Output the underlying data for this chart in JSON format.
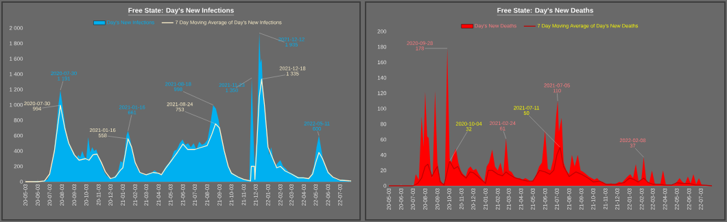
{
  "chart_data": [
    {
      "type": "area",
      "title": "Free State:  Day's New Infections",
      "legend": "top",
      "xlim": [
        "2020-05-03",
        "2022-07-31"
      ],
      "ylim": [
        0,
        2000
      ],
      "xticks": [
        {
          "value": "2020-05-03",
          "label": "20-05-03"
        },
        {
          "value": "2020-06-03",
          "label": "20-06-03"
        },
        {
          "value": "2020-07-03",
          "label": "20-07-03"
        },
        {
          "value": "2020-08-03",
          "label": "20-08-03"
        },
        {
          "value": "2020-09-03",
          "label": "20-09-03"
        },
        {
          "value": "2020-10-03",
          "label": "20-10-03"
        },
        {
          "value": "2020-11-03",
          "label": "20-11-03"
        },
        {
          "value": "2020-12-03",
          "label": "20-12-03"
        },
        {
          "value": "2021-01-03",
          "label": "21-01-03"
        },
        {
          "value": "2021-02-03",
          "label": "21-02-03"
        },
        {
          "value": "2021-03-03",
          "label": "21-03-03"
        },
        {
          "value": "2021-04-03",
          "label": "21-04-03"
        },
        {
          "value": "2021-05-03",
          "label": "21-05-03"
        },
        {
          "value": "2021-06-03",
          "label": "21-06-03"
        },
        {
          "value": "2021-07-03",
          "label": "21-07-03"
        },
        {
          "value": "2021-08-03",
          "label": "21-08-03"
        },
        {
          "value": "2021-09-03",
          "label": "21-09-03"
        },
        {
          "value": "2021-10-03",
          "label": "21-10-03"
        },
        {
          "value": "2021-11-03",
          "label": "21-11-03"
        },
        {
          "value": "2021-12-03",
          "label": "21-12-03"
        },
        {
          "value": "2022-01-03",
          "label": "22-01-03"
        },
        {
          "value": "2022-02-03",
          "label": "22-02-03"
        },
        {
          "value": "2022-03-03",
          "label": "22-03-03"
        },
        {
          "value": "2022-04-03",
          "label": "22-04-03"
        },
        {
          "value": "2022-05-03",
          "label": "22-05-03"
        },
        {
          "value": "2022-06-03",
          "label": "22-06-03"
        },
        {
          "value": "2022-07-03",
          "label": "22-07-03"
        }
      ],
      "yticks": [
        0,
        200,
        400,
        600,
        800,
        {
          "value": 1000,
          "label": "1 000"
        },
        {
          "value": 1200,
          "label": "1 200"
        },
        {
          "value": 1400,
          "label": "1 400"
        },
        {
          "value": 1600,
          "label": "1 600"
        },
        {
          "value": 1800,
          "label": "1 800"
        },
        {
          "value": 2000,
          "label": "2 000"
        }
      ],
      "series": [
        {
          "name": "Day's New Infections",
          "color": "#00b0f0",
          "x": [
            "2020-05-03",
            "2020-05-17",
            "2020-05-31",
            "2020-06-14",
            "2020-06-28",
            "2020-07-05",
            "2020-07-10",
            "2020-07-15",
            "2020-07-20",
            "2020-07-25",
            "2020-07-30",
            "2020-08-03",
            "2020-08-08",
            "2020-08-13",
            "2020-08-18",
            "2020-08-23",
            "2020-08-28",
            "2020-09-03",
            "2020-09-08",
            "2020-09-13",
            "2020-09-18",
            "2020-09-23",
            "2020-09-28",
            "2020-10-03",
            "2020-10-08",
            "2020-10-13",
            "2020-10-18",
            "2020-10-23",
            "2020-10-28",
            "2020-11-03",
            "2020-11-08",
            "2020-11-13",
            "2020-11-18",
            "2020-11-23",
            "2020-11-28",
            "2020-12-03",
            "2020-12-08",
            "2020-12-13",
            "2020-12-18",
            "2020-12-23",
            "2020-12-28",
            "2021-01-02",
            "2021-01-07",
            "2021-01-12",
            "2021-01-16",
            "2021-01-21",
            "2021-01-26",
            "2021-01-31",
            "2021-02-05",
            "2021-02-10",
            "2021-02-15",
            "2021-02-20",
            "2021-02-25",
            "2021-03-03",
            "2021-03-10",
            "2021-03-17",
            "2021-03-24",
            "2021-03-31",
            "2021-04-07",
            "2021-04-14",
            "2021-04-21",
            "2021-04-28",
            "2021-05-05",
            "2021-05-12",
            "2021-05-19",
            "2021-05-26",
            "2021-06-02",
            "2021-06-09",
            "2021-06-16",
            "2021-06-23",
            "2021-06-30",
            "2021-07-07",
            "2021-07-14",
            "2021-07-21",
            "2021-07-28",
            "2021-08-04",
            "2021-08-11",
            "2021-08-18",
            "2021-08-25",
            "2021-09-01",
            "2021-09-08",
            "2021-09-15",
            "2021-09-22",
            "2021-09-29",
            "2021-10-06",
            "2021-10-13",
            "2021-10-20",
            "2021-10-27",
            "2021-11-03",
            "2021-11-10",
            "2021-11-17",
            "2021-11-23",
            "2021-11-30",
            "2021-12-05",
            "2021-12-08",
            "2021-12-12",
            "2021-12-15",
            "2021-12-18",
            "2021-12-22",
            "2021-12-27",
            "2022-01-01",
            "2022-01-06",
            "2022-01-11",
            "2022-01-16",
            "2022-01-21",
            "2022-01-28",
            "2022-02-03",
            "2022-02-10",
            "2022-02-17",
            "2022-02-24",
            "2022-03-03",
            "2022-03-10",
            "2022-03-17",
            "2022-03-24",
            "2022-03-31",
            "2022-04-07",
            "2022-04-14",
            "2022-04-21",
            "2022-04-28",
            "2022-05-05",
            "2022-05-11",
            "2022-05-16",
            "2022-05-21",
            "2022-05-28",
            "2022-06-04",
            "2022-06-11",
            "2022-06-18",
            "2022-06-25",
            "2022-07-02",
            "2022-07-09",
            "2022-07-16",
            "2022-07-23",
            "2022-07-30"
          ],
          "values": [
            0,
            0,
            10,
            10,
            30,
            120,
            250,
            450,
            700,
            1000,
            1191,
            1050,
            850,
            650,
            550,
            480,
            420,
            370,
            300,
            350,
            320,
            400,
            330,
            300,
            580,
            380,
            450,
            400,
            420,
            330,
            280,
            180,
            120,
            80,
            60,
            40,
            50,
            70,
            90,
            150,
            270,
            250,
            350,
            600,
            661,
            560,
            440,
            300,
            200,
            160,
            120,
            110,
            90,
            100,
            110,
            120,
            150,
            120,
            90,
            130,
            200,
            240,
            300,
            400,
            420,
            500,
            550,
            480,
            500,
            450,
            500,
            420,
            520,
            480,
            500,
            550,
            750,
            998,
            950,
            800,
            550,
            400,
            250,
            150,
            110,
            90,
            70,
            50,
            30,
            20,
            20,
            1350,
            200,
            500,
            1000,
            1935,
            1550,
            1600,
            1100,
            900,
            550,
            350,
            450,
            300,
            200,
            250,
            280,
            200,
            170,
            130,
            110,
            90,
            70,
            60,
            60,
            50,
            40,
            80,
            200,
            450,
            600,
            450,
            300,
            200,
            130,
            80,
            50,
            30,
            20,
            30,
            20,
            10,
            10
          ]
        },
        {
          "name": "7 Day Moving Average of Day's New Infections",
          "type": "line",
          "color": "#fff2cc",
          "x": [
            "2020-05-03",
            "2020-06-03",
            "2020-06-20",
            "2020-07-03",
            "2020-07-15",
            "2020-07-30",
            "2020-08-10",
            "2020-08-20",
            "2020-09-03",
            "2020-09-15",
            "2020-10-01",
            "2020-10-10",
            "2020-10-20",
            "2020-10-30",
            "2020-11-10",
            "2020-11-20",
            "2020-12-03",
            "2020-12-15",
            "2020-12-28",
            "2021-01-03",
            "2021-01-16",
            "2021-01-25",
            "2021-02-03",
            "2021-02-15",
            "2021-03-03",
            "2021-03-20",
            "2021-04-03",
            "2021-04-10",
            "2021-04-20",
            "2021-05-03",
            "2021-05-20",
            "2021-06-03",
            "2021-06-15",
            "2021-07-03",
            "2021-07-15",
            "2021-08-03",
            "2021-08-15",
            "2021-08-24",
            "2021-09-03",
            "2021-09-15",
            "2021-09-25",
            "2021-10-03",
            "2021-10-20",
            "2021-11-03",
            "2021-11-20",
            "2021-11-22",
            "2021-11-30",
            "2021-12-01",
            "2021-12-05",
            "2021-12-12",
            "2021-12-18",
            "2021-12-25",
            "2022-01-03",
            "2022-01-15",
            "2022-01-25",
            "2022-02-03",
            "2022-02-15",
            "2022-03-03",
            "2022-03-20",
            "2022-04-03",
            "2022-04-15",
            "2022-04-25",
            "2022-05-03",
            "2022-05-11",
            "2022-05-20",
            "2022-06-03",
            "2022-06-15",
            "2022-07-03",
            "2022-07-31"
          ],
          "values": [
            0,
            0,
            10,
            100,
            400,
            994,
            700,
            500,
            350,
            280,
            300,
            280,
            350,
            360,
            250,
            130,
            40,
            60,
            150,
            180,
            558,
            450,
            250,
            120,
            90,
            120,
            110,
            90,
            170,
            260,
            380,
            490,
            420,
            420,
            440,
            470,
            620,
            753,
            700,
            400,
            200,
            110,
            60,
            30,
            10,
            200,
            200,
            30,
            400,
            1100,
            1335,
            1000,
            450,
            300,
            180,
            200,
            140,
            100,
            50,
            50,
            40,
            100,
            250,
            380,
            300,
            120,
            60,
            20,
            10
          ]
        }
      ],
      "annotations": [
        "2020-07-30",
        {
          "text": "1 191",
          "x": "2020-07-30",
          "y": 1191
        },
        "2020-07-30",
        {
          "text": "994",
          "x": "2020-07-30",
          "y": 994
        },
        "2021-01-16",
        {
          "text": "661",
          "x": "2021-01-16",
          "y": 661
        },
        "2021-01-16",
        {
          "text": "558",
          "x": "2021-01-16",
          "y": 558
        },
        "2021-08-18",
        {
          "text": "998",
          "x": "2021-08-18",
          "y": 998
        },
        "2021-08-24",
        {
          "text": "753",
          "x": "2021-08-24",
          "y": 753
        },
        "2021-11-23",
        {
          "text": "1 350",
          "x": "2021-11-23",
          "y": 1350
        },
        "2021-12-12",
        {
          "text": "1 935",
          "x": "2021-12-12",
          "y": 1935
        },
        "2021-12-18",
        {
          "text": "1 335",
          "x": "2021-12-18",
          "y": 1335
        },
        "2022-05-11",
        {
          "text": "600",
          "x": "2022-05-11",
          "y": 600
        }
      ]
    },
    {
      "type": "area",
      "title": "Free State:  Day's New Deaths",
      "legend": "top",
      "xlim": [
        "2020-05-03",
        "2022-07-31"
      ],
      "ylim": [
        0,
        200
      ],
      "xticks": [
        {
          "value": "2020-05-03",
          "label": "20-05-03"
        },
        {
          "value": "2020-06-03",
          "label": "20-06-03"
        },
        {
          "value": "2020-07-03",
          "label": "20-07-03"
        },
        {
          "value": "2020-08-03",
          "label": "20-08-03"
        },
        {
          "value": "2020-09-03",
          "label": "20-09-03"
        },
        {
          "value": "2020-10-03",
          "label": "20-10-03"
        },
        {
          "value": "2020-11-03",
          "label": "20-11-03"
        },
        {
          "value": "2020-12-03",
          "label": "20-12-03"
        },
        {
          "value": "2021-01-03",
          "label": "21-01-03"
        },
        {
          "value": "2021-02-03",
          "label": "21-02-03"
        },
        {
          "value": "2021-03-03",
          "label": "21-03-03"
        },
        {
          "value": "2021-04-03",
          "label": "21-04-03"
        },
        {
          "value": "2021-05-03",
          "label": "21-05-03"
        },
        {
          "value": "2021-06-03",
          "label": "21-06-03"
        },
        {
          "value": "2021-07-03",
          "label": "21-07-03"
        },
        {
          "value": "2021-08-03",
          "label": "21-08-03"
        },
        {
          "value": "2021-09-03",
          "label": "21-09-03"
        },
        {
          "value": "2021-10-03",
          "label": "21-10-03"
        },
        {
          "value": "2021-11-03",
          "label": "21-11-03"
        },
        {
          "value": "2021-12-03",
          "label": "21-12-03"
        },
        {
          "value": "2022-01-03",
          "label": "22-01-03"
        },
        {
          "value": "2022-02-03",
          "label": "22-02-03"
        },
        {
          "value": "2022-03-03",
          "label": "22-03-03"
        },
        {
          "value": "2022-04-03",
          "label": "22-04-03"
        },
        {
          "value": "2022-05-03",
          "label": "22-05-03"
        },
        {
          "value": "2022-06-03",
          "label": "22-06-03"
        },
        {
          "value": "2022-07-03",
          "label": "22-07-03"
        }
      ],
      "yticks": [
        0,
        20,
        40,
        60,
        80,
        100,
        120,
        140,
        160,
        180,
        200
      ],
      "series": [
        {
          "name": "Day's New Deaths",
          "color": "#ff0000",
          "x": [
            "2020-05-03",
            "2020-05-24",
            "2020-06-14",
            "2020-07-05",
            "2020-07-10",
            "2020-07-18",
            "2020-07-25",
            "2020-07-30",
            "2020-08-03",
            "2020-08-08",
            "2020-08-12",
            "2020-08-17",
            "2020-08-22",
            "2020-08-28",
            "2020-09-03",
            "2020-09-10",
            "2020-09-17",
            "2020-09-22",
            "2020-09-28",
            "2020-10-04",
            "2020-10-09",
            "2020-10-14",
            "2020-10-20",
            "2020-10-26",
            "2020-11-01",
            "2020-11-07",
            "2020-11-14",
            "2020-11-20",
            "2020-11-26",
            "2020-12-03",
            "2020-12-10",
            "2020-12-17",
            "2020-12-24",
            "2020-12-31",
            "2021-01-06",
            "2021-01-12",
            "2021-01-20",
            "2021-01-27",
            "2021-02-03",
            "2021-02-10",
            "2021-02-17",
            "2021-02-24",
            "2021-03-03",
            "2021-03-10",
            "2021-03-17",
            "2021-03-24",
            "2021-03-31",
            "2021-04-07",
            "2021-04-14",
            "2021-04-21",
            "2021-04-28",
            "2021-05-05",
            "2021-05-12",
            "2021-05-19",
            "2021-05-26",
            "2021-06-03",
            "2021-06-10",
            "2021-06-17",
            "2021-06-24",
            "2021-07-01",
            "2021-07-05",
            "2021-07-08",
            "2021-07-15",
            "2021-07-20",
            "2021-07-27",
            "2021-08-03",
            "2021-08-10",
            "2021-08-17",
            "2021-08-25",
            "2021-09-01",
            "2021-09-08",
            "2021-09-15",
            "2021-09-22",
            "2021-09-29",
            "2021-10-06",
            "2021-10-13",
            "2021-10-20",
            "2021-10-27",
            "2021-11-03",
            "2021-11-10",
            "2021-11-17",
            "2021-11-24",
            "2021-12-01",
            "2021-12-08",
            "2021-12-15",
            "2021-12-22",
            "2021-12-29",
            "2022-01-05",
            "2022-01-12",
            "2022-01-19",
            "2022-01-26",
            "2022-02-02",
            "2022-02-08",
            "2022-02-15",
            "2022-02-22",
            "2022-03-01",
            "2022-03-08",
            "2022-03-15",
            "2022-03-22",
            "2022-03-29",
            "2022-04-05",
            "2022-04-12",
            "2022-04-19",
            "2022-04-26",
            "2022-05-03",
            "2022-05-10",
            "2022-05-17",
            "2022-05-24",
            "2022-05-31",
            "2022-06-07",
            "2022-06-14",
            "2022-06-21",
            "2022-06-28",
            "2022-07-05",
            "2022-07-12",
            "2022-07-19",
            "2022-07-26"
          ],
          "values": [
            0,
            0,
            0,
            0,
            15,
            8,
            90,
            50,
            122,
            64,
            62,
            20,
            10,
            123,
            30,
            8,
            2,
            5,
            178,
            35,
            30,
            42,
            48,
            30,
            20,
            15,
            12,
            22,
            25,
            20,
            22,
            15,
            10,
            5,
            25,
            30,
            47,
            25,
            20,
            30,
            15,
            61,
            20,
            18,
            12,
            10,
            10,
            8,
            10,
            8,
            5,
            8,
            15,
            25,
            30,
            72,
            22,
            20,
            35,
            90,
            110,
            70,
            88,
            30,
            20,
            15,
            40,
            25,
            40,
            20,
            18,
            15,
            12,
            10,
            8,
            10,
            6,
            5,
            3,
            2,
            3,
            2,
            3,
            5,
            4,
            8,
            12,
            15,
            10,
            28,
            6,
            8,
            37,
            5,
            4,
            20,
            3,
            2,
            2,
            20,
            2,
            1,
            1,
            1,
            5,
            10,
            5,
            3,
            12,
            3,
            15,
            2,
            10,
            1,
            1,
            1,
            0
          ]
        },
        {
          "name": "7 Day Moving Average of Day's New Deaths",
          "type": "line",
          "color": "#c00000",
          "x": [
            "2020-05-03",
            "2020-07-03",
            "2020-07-15",
            "2020-07-25",
            "2020-08-03",
            "2020-08-10",
            "2020-08-20",
            "2020-08-28",
            "2020-09-03",
            "2020-09-10",
            "2020-09-20",
            "2020-10-04",
            "2020-10-15",
            "2020-10-25",
            "2020-11-03",
            "2020-11-15",
            "2020-11-25",
            "2020-12-03",
            "2020-12-15",
            "2021-01-03",
            "2021-01-10",
            "2021-01-20",
            "2021-02-03",
            "2021-02-15",
            "2021-02-24",
            "2021-03-03",
            "2021-03-20",
            "2021-04-03",
            "2021-04-20",
            "2021-05-03",
            "2021-05-20",
            "2021-06-03",
            "2021-06-15",
            "2021-06-25",
            "2021-07-03",
            "2021-07-11",
            "2021-07-20",
            "2021-08-03",
            "2021-08-20",
            "2021-09-03",
            "2021-09-20",
            "2021-10-03",
            "2021-10-20",
            "2021-11-03",
            "2021-11-20",
            "2021-12-03",
            "2021-12-20",
            "2022-01-03",
            "2022-01-15",
            "2022-01-25",
            "2022-02-08",
            "2022-02-20",
            "2022-03-03",
            "2022-03-20",
            "2022-04-03",
            "2022-04-20",
            "2022-05-03",
            "2022-05-20",
            "2022-06-03",
            "2022-06-20",
            "2022-07-03",
            "2022-07-31"
          ],
          "values": [
            0,
            0,
            3,
            10,
            25,
            28,
            12,
            20,
            25,
            5,
            1,
            32,
            22,
            25,
            15,
            10,
            18,
            17,
            12,
            3,
            20,
            20,
            15,
            13,
            18,
            15,
            10,
            8,
            6,
            6,
            20,
            18,
            15,
            20,
            40,
            50,
            25,
            12,
            18,
            15,
            10,
            5,
            6,
            2,
            2,
            2,
            4,
            10,
            8,
            5,
            10,
            4,
            2,
            2,
            1,
            1,
            4,
            3,
            3,
            1,
            1,
            0
          ]
        }
      ],
      "annotations": [
        "2020-09-28",
        {
          "text": "178",
          "x": "2020-09-28",
          "y": 178
        },
        "2020-10-04",
        {
          "text": "32",
          "x": "2020-10-04",
          "y": 32
        },
        "2021-02-24",
        {
          "text": "61",
          "x": "2021-02-24",
          "y": 61
        },
        "2021-07-11",
        {
          "text": "50",
          "x": "2021-07-11",
          "y": 50
        },
        "2021-07-05",
        {
          "text": "110",
          "x": "2021-07-05",
          "y": 110
        },
        "2022-02-08",
        {
          "text": "37",
          "x": "2022-02-08",
          "y": 37
        }
      ]
    }
  ]
}
